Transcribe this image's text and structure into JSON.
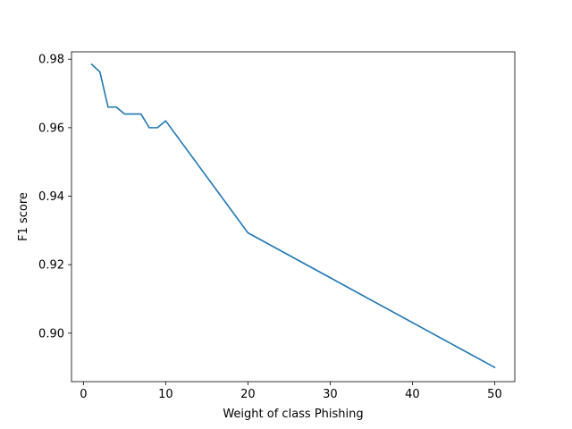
{
  "chart_data": {
    "type": "line",
    "title": "",
    "xlabel": "Weight of class Phishing",
    "ylabel": "F1 score",
    "xlim": [
      -1.45,
      52.45
    ],
    "ylim": [
      0.88585,
      0.98215
    ],
    "xticks": [
      0,
      10,
      20,
      30,
      40,
      50
    ],
    "xtick_labels": [
      "0",
      "10",
      "20",
      "30",
      "40",
      "50"
    ],
    "yticks": [
      0.9,
      0.92,
      0.94,
      0.96,
      0.98
    ],
    "ytick_labels": [
      "0.90",
      "0.92",
      "0.94",
      "0.96",
      "0.98"
    ],
    "grid": false,
    "legend": null,
    "series": [
      {
        "color": "#1f77b4",
        "x": [
          1,
          2,
          3,
          4,
          5,
          6,
          7,
          8,
          9,
          10,
          20,
          50
        ],
        "y": [
          0.9785,
          0.9763,
          0.966,
          0.966,
          0.964,
          0.964,
          0.964,
          0.96,
          0.96,
          0.962,
          0.9293,
          0.89
        ]
      }
    ]
  }
}
